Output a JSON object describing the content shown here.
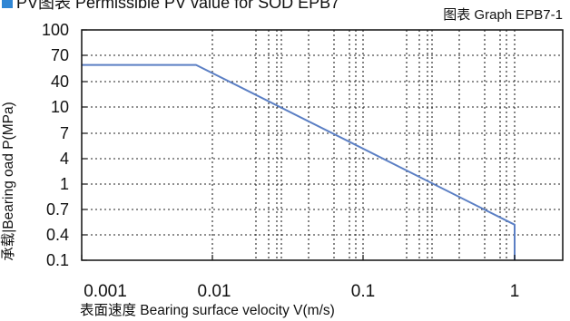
{
  "header": {
    "title": "PV图表 Permissible PV value for SOD EPB7",
    "graph_id": "图表 Graph EPB7-1"
  },
  "colors": {
    "accent": "#2f86d4",
    "line": "#5b7fc4",
    "grid": "#222222"
  },
  "chart_data": {
    "type": "line",
    "title": "",
    "xlabel": "表面速度 Bearing surface velocity V(m/s)",
    "ylabel": "承载|Bearing oad P(MPa)",
    "x_scale": "log",
    "y_scale": "log",
    "x_ticks": [
      "0.001",
      "0.01",
      "0.1",
      "1"
    ],
    "y_ticks": [
      "100",
      "70",
      "40",
      "10",
      "7",
      "4",
      "1",
      "0.7",
      "0.4",
      "0.1"
    ],
    "xlim": [
      0.001,
      2
    ],
    "ylim": [
      0.1,
      100
    ],
    "grid": true,
    "legend": "none",
    "series": [
      {
        "x": [
          0.001,
          0.0075,
          1,
          1
        ],
        "y": [
          57,
          57,
          0.5,
          0.1
        ]
      }
    ]
  }
}
